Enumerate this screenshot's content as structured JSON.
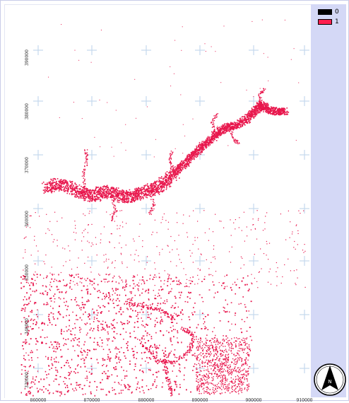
{
  "legend": {
    "items": [
      {
        "label": "0",
        "color": "#000000"
      },
      {
        "label": "1",
        "color": "#ff1f4f"
      }
    ]
  },
  "map": {
    "background_color": "#ffffff",
    "grid_marker_color": "#c6d9ee",
    "feature_color": "#e8174d",
    "x_ticks": [
      "860000",
      "870000",
      "880000",
      "890000",
      "900000",
      "910000"
    ],
    "y_ticks": [
      "390000",
      "380000",
      "370000",
      "360000",
      "350000",
      "340000",
      "330000"
    ],
    "grid_marker_icon": "plus-cross-marker"
  },
  "north_arrow": {
    "label": "N",
    "icon": "north-arrow-icon"
  }
}
